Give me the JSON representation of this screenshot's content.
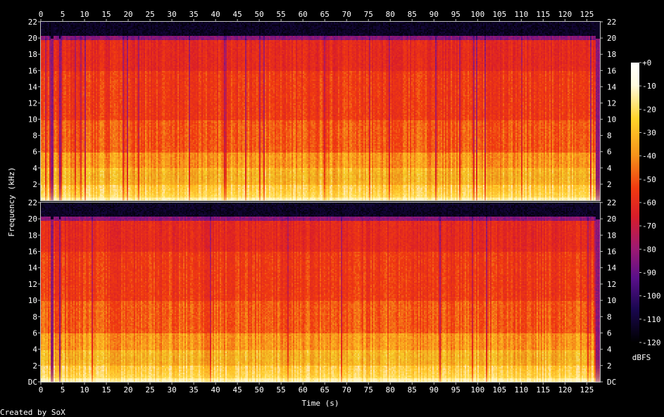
{
  "chart_data": {
    "type": "heatmap",
    "title": "",
    "xlabel": "Time (s)",
    "ylabel": "Frequency (kHz)",
    "x_ticks": [
      0,
      5,
      10,
      15,
      20,
      25,
      30,
      35,
      40,
      45,
      50,
      55,
      60,
      65,
      70,
      75,
      80,
      85,
      90,
      95,
      100,
      105,
      110,
      115,
      120,
      125
    ],
    "xlim": [
      0,
      128
    ],
    "channels": [
      {
        "y_ticks": [
          "22",
          "20",
          "18",
          "16",
          "14",
          "12",
          "10",
          "8",
          "6",
          "4",
          "2"
        ]
      },
      {
        "y_ticks": [
          "22",
          "20",
          "18",
          "16",
          "14",
          "12",
          "10",
          "8",
          "6",
          "4",
          "2",
          "DC"
        ]
      }
    ],
    "ylim": [
      0,
      22
    ],
    "colorbar": {
      "label": "dBFS",
      "ticks": [
        "+0",
        "-10",
        "-20",
        "-30",
        "-40",
        "-50",
        "-60",
        "-70",
        "-80",
        "-90",
        "-100",
        "-110",
        "-120"
      ],
      "range": [
        -120,
        0
      ]
    },
    "quiet_regions_s": [
      [
        2.2,
        2.6
      ],
      [
        3.9,
        4.5
      ],
      [
        127.0,
        128.0
      ]
    ],
    "footer": "Created by SoX"
  },
  "colors": {
    "background": "#000000",
    "text": "#ffffff",
    "frame": "#bfbfbf",
    "palette": [
      "#000000",
      "#1a0750",
      "#5a108a",
      "#a01a70",
      "#d81d2a",
      "#f03a10",
      "#f7931a",
      "#ffd42a",
      "#fffbe0",
      "#ffffff"
    ]
  }
}
